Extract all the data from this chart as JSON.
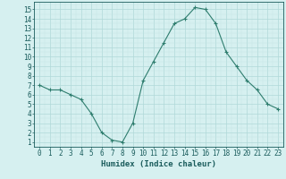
{
  "x": [
    0,
    1,
    2,
    3,
    4,
    5,
    6,
    7,
    8,
    9,
    10,
    11,
    12,
    13,
    14,
    15,
    16,
    17,
    18,
    19,
    20,
    21,
    22,
    23
  ],
  "y": [
    7,
    6.5,
    6.5,
    6,
    5.5,
    4,
    2,
    1.2,
    1,
    3,
    7.5,
    9.5,
    11.5,
    13.5,
    14,
    15.2,
    15,
    13.5,
    10.5,
    9,
    7.5,
    6.5,
    5,
    4.5
  ],
  "line_color": "#2e7d6e",
  "marker": "+",
  "marker_size": 3,
  "marker_lw": 0.8,
  "bg_color": "#d6f0f0",
  "grid_major_color": "#b0d8d8",
  "grid_minor_color": "#c4e4e4",
  "xlabel": "Humidex (Indice chaleur)",
  "xlabel_fontsize": 6.5,
  "xlabel_color": "#1a5c5c",
  "ylabel_min": 1,
  "ylabel_max": 15,
  "xlim": [
    -0.5,
    23.5
  ],
  "ylim": [
    0.5,
    15.8
  ],
  "tick_fontsize": 5.5,
  "tick_color": "#1a5c5c",
  "spine_color": "#1a5c5c",
  "line_width": 0.8
}
